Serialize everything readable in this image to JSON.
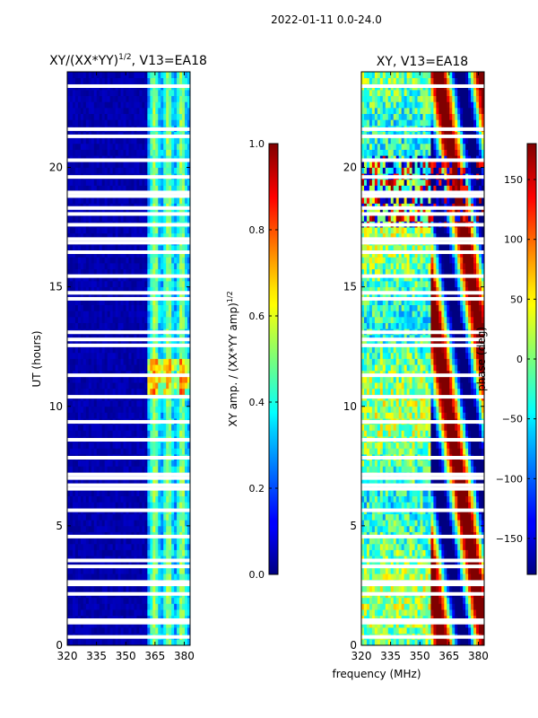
{
  "figure": {
    "suptitle": "2022-01-11 0.0-24.0",
    "xlabel": "frequency (MHz)"
  },
  "chart_data": [
    {
      "type": "heatmap",
      "title_main": "XY/(XX*YY)",
      "title_exp": "1/2",
      "title_tail": ", V13=EA18",
      "xlabel": "",
      "ylabel": "UT (hours)",
      "x_ticks": [
        "320",
        "335",
        "350",
        "365",
        "380"
      ],
      "x_tick_values": [
        320,
        335,
        350,
        365,
        380
      ],
      "xlim": [
        320,
        383
      ],
      "y_ticks": [
        "0",
        "5",
        "10",
        "15",
        "20"
      ],
      "y_tick_values": [
        0,
        5,
        10,
        15,
        20
      ],
      "ylim": [
        0,
        24
      ],
      "colorbar": {
        "label_main": "XY amp. / (XX*YY amp)",
        "label_exp": "1/2",
        "ticks": [
          "0.0",
          "0.2",
          "0.4",
          "0.6",
          "0.8",
          "1.0"
        ],
        "tick_values": [
          0.0,
          0.2,
          0.4,
          0.6,
          0.8,
          1.0
        ],
        "range": [
          0.0,
          1.0
        ]
      },
      "colormap": "jet",
      "approx_pattern": "values near 0.02-0.05 for 320-361 MHz; 0.3-0.7 for 361-380 MHz with peaks ~0.8 around UT 10.5-12"
    },
    {
      "type": "heatmap",
      "title": "XY, V13=EA18",
      "xlabel": "",
      "ylabel": "",
      "x_ticks": [
        "320",
        "335",
        "350",
        "365",
        "380"
      ],
      "x_tick_values": [
        320,
        335,
        350,
        365,
        380
      ],
      "xlim": [
        320,
        383
      ],
      "y_ticks": [
        "0",
        "5",
        "10",
        "15",
        "20"
      ],
      "y_tick_values": [
        0,
        5,
        10,
        15,
        20
      ],
      "ylim": [
        0,
        24
      ],
      "colorbar": {
        "label": "phase (deg)",
        "ticks": [
          "−150",
          "−100",
          "−50",
          "0",
          "50",
          "100",
          "150"
        ],
        "tick_values": [
          -150,
          -100,
          -50,
          0,
          50,
          100,
          150
        ],
        "range": [
          -180,
          180
        ]
      },
      "colormap": "jet",
      "approx_pattern": "noisy phase, mostly -50 to 50 deg with diagonal wrapping stripes (+-180) at high frequencies"
    }
  ],
  "flagged_hours": [
    0.35,
    0.95,
    1.05,
    2.15,
    2.55,
    2.65,
    3.3,
    3.55,
    4.55,
    5.65,
    6.55,
    6.7,
    7.0,
    7.15,
    7.85,
    8.6,
    9.35,
    10.4,
    11.3,
    12.55,
    12.8,
    13.1,
    14.5,
    14.75,
    15.45,
    16.45,
    16.85,
    17.0,
    17.6,
    18.05,
    18.3,
    18.8,
    18.95,
    19.6,
    20.3,
    21.3,
    21.6,
    23.4
  ]
}
